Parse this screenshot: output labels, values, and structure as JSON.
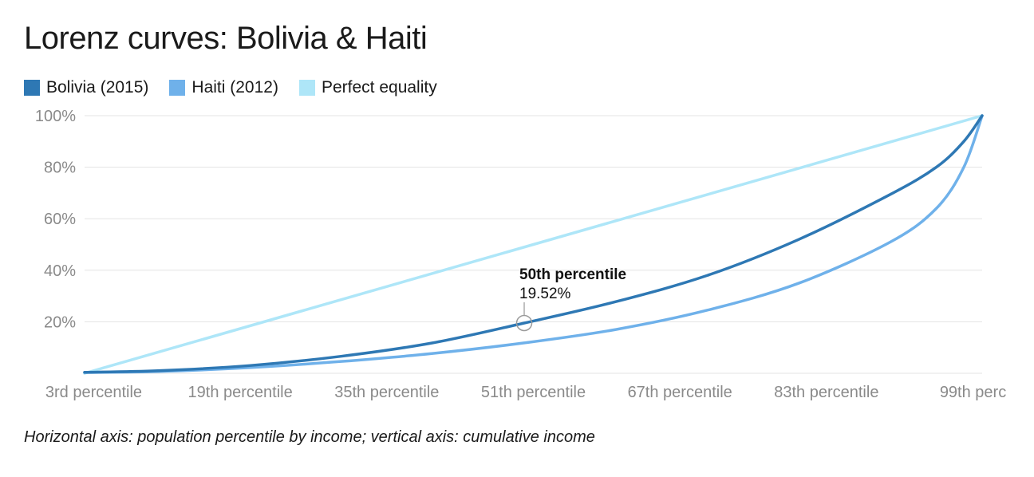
{
  "chart_data": {
    "type": "line",
    "title": "Lorenz curves: Bolivia & Haiti",
    "xlabel": "",
    "ylabel": "",
    "x_range": [
      2,
      100
    ],
    "ylim": [
      0,
      100
    ],
    "y_ticks": [
      20,
      40,
      60,
      80,
      100
    ],
    "y_tick_labels": [
      "20%",
      "40%",
      "60%",
      "80%",
      "100%"
    ],
    "x_ticks": [
      3,
      19,
      35,
      51,
      67,
      83,
      99
    ],
    "x_tick_labels": [
      "3rd percentile",
      "19th percentile",
      "35th percentile",
      "51th percentile",
      "67th percentile",
      "83th percentile",
      "99th perc"
    ],
    "grid": true,
    "legend_position": "top-left",
    "series": [
      {
        "name": "Bolivia (2015)",
        "color": "#2e78b4",
        "x": [
          2,
          10,
          20,
          30,
          40,
          50,
          60,
          70,
          80,
          90,
          95,
          98,
          100
        ],
        "y": [
          0.4,
          1.0,
          3.0,
          6.6,
          11.8,
          19.5,
          27.8,
          38.0,
          52.0,
          69.5,
          80.0,
          90.0,
          100
        ]
      },
      {
        "name": "Haiti (2012)",
        "color": "#6fb1ea",
        "x": [
          2,
          10,
          20,
          30,
          40,
          50,
          60,
          70,
          80,
          90,
          95,
          98,
          100
        ],
        "y": [
          0.3,
          0.7,
          2.2,
          4.6,
          7.7,
          11.8,
          17.0,
          24.5,
          35.0,
          51.0,
          64.0,
          80.0,
          100
        ]
      },
      {
        "name": "Perfect equality",
        "color": "#aee6f8",
        "x": [
          2,
          100
        ],
        "y": [
          0,
          100
        ]
      }
    ],
    "annotation": {
      "label": "50th percentile",
      "value_text": "19.52%",
      "x": 50,
      "y": 19.52,
      "series": "Bolivia (2015)"
    }
  },
  "footer": {
    "caption": "Horizontal axis: population percentile by income; vertical axis: cumulative income"
  }
}
